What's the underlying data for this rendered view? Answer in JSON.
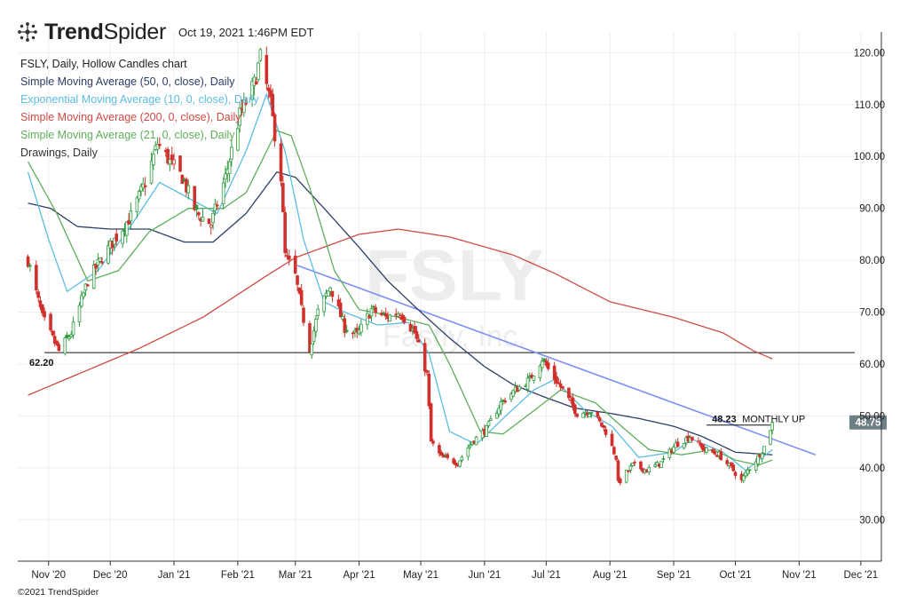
{
  "header": {
    "brand_bold": "Trend",
    "brand_light": "Spider",
    "timestamp": "Oct 19, 2021 1:46PM EDT",
    "logo_icon": "trendspider-logo-icon"
  },
  "legend": {
    "title": "FSLY, Daily, Hollow Candles chart",
    "items": [
      {
        "label": "Simple Moving Average (50, 0, close), Daily",
        "color": "#2c3e66"
      },
      {
        "label": "Exponential Moving Average (10, 0, close), Daily",
        "color": "#5bbde0"
      },
      {
        "label": "Simple Moving Average (200, 0, close), Daily",
        "color": "#d04b45"
      },
      {
        "label": "Simple Moving Average (21, 0, close), Daily",
        "color": "#5fae5a"
      },
      {
        "label": "Drawings, Daily",
        "color": "#333333"
      }
    ]
  },
  "footer": {
    "copyright": "©2021 TrendSpider"
  },
  "chart_data": {
    "type": "candlestick",
    "watermark": {
      "symbol": "FSLY",
      "company": "Fastly, Inc."
    },
    "y_axis": {
      "min": 22,
      "max": 124,
      "ticks": [
        30,
        40,
        50,
        60,
        70,
        80,
        90,
        100,
        110,
        120
      ],
      "tick_labels": [
        "30.00",
        "40.00",
        "50.00",
        "60.00",
        "70.00",
        "80.00",
        "90.00",
        "100.00",
        "110.00",
        "120.00"
      ]
    },
    "x_axis": {
      "ticks": [
        {
          "label": "Nov '20",
          "date": "2020-11-01"
        },
        {
          "label": "Dec '20",
          "date": "2020-12-01"
        },
        {
          "label": "Jan '21",
          "date": "2021-01-01"
        },
        {
          "label": "Feb '21",
          "date": "2021-02-01"
        },
        {
          "label": "Mar '21",
          "date": "2021-03-01"
        },
        {
          "label": "Apr '21",
          "date": "2021-04-01"
        },
        {
          "label": "May '21",
          "date": "2021-05-01"
        },
        {
          "label": "Jun '21",
          "date": "2021-06-01"
        },
        {
          "label": "Jul '21",
          "date": "2021-07-01"
        },
        {
          "label": "Aug '21",
          "date": "2021-08-01"
        },
        {
          "label": "Sep '21",
          "date": "2021-09-01"
        },
        {
          "label": "Oct '21",
          "date": "2021-10-01"
        },
        {
          "label": "Nov '21",
          "date": "2021-11-01"
        },
        {
          "label": "Dec '21",
          "date": "2021-12-01"
        }
      ]
    },
    "price_path": [
      [
        "2020-10-22",
        80.0
      ],
      [
        "2020-10-29",
        69.0
      ],
      [
        "2020-11-06",
        62.5
      ],
      [
        "2020-11-12",
        66.0
      ],
      [
        "2020-11-20",
        76.0
      ],
      [
        "2020-11-27",
        80.5
      ],
      [
        "2020-12-04",
        84.5
      ],
      [
        "2020-12-11",
        88.5
      ],
      [
        "2020-12-18",
        95.0
      ],
      [
        "2020-12-24",
        102.5
      ],
      [
        "2020-12-30",
        99.0
      ],
      [
        "2021-01-05",
        96.0
      ],
      [
        "2021-01-12",
        89.0
      ],
      [
        "2021-01-19",
        87.0
      ],
      [
        "2021-01-26",
        96.0
      ],
      [
        "2021-02-02",
        108.0
      ],
      [
        "2021-02-09",
        114.0
      ],
      [
        "2021-02-12",
        119.0
      ],
      [
        "2021-02-17",
        110.0
      ],
      [
        "2021-02-22",
        96.0
      ],
      [
        "2021-02-24",
        81.0
      ],
      [
        "2021-03-01",
        77.0
      ],
      [
        "2021-03-04",
        70.5
      ],
      [
        "2021-03-08",
        63.0
      ],
      [
        "2021-03-12",
        70.0
      ],
      [
        "2021-03-18",
        75.0
      ],
      [
        "2021-03-25",
        67.0
      ],
      [
        "2021-03-31",
        65.5
      ],
      [
        "2021-04-07",
        70.5
      ],
      [
        "2021-04-14",
        69.0
      ],
      [
        "2021-04-21",
        70.0
      ],
      [
        "2021-04-28",
        66.0
      ],
      [
        "2021-05-04",
        58.0
      ],
      [
        "2021-05-06",
        45.0
      ],
      [
        "2021-05-11",
        42.0
      ],
      [
        "2021-05-19",
        41.0
      ],
      [
        "2021-05-26",
        45.0
      ],
      [
        "2021-06-02",
        47.5
      ],
      [
        "2021-06-09",
        52.5
      ],
      [
        "2021-06-16",
        55.0
      ],
      [
        "2021-06-23",
        57.0
      ],
      [
        "2021-06-29",
        61.0
      ],
      [
        "2021-07-02",
        59.0
      ],
      [
        "2021-07-09",
        55.0
      ],
      [
        "2021-07-16",
        50.5
      ],
      [
        "2021-07-23",
        51.0
      ],
      [
        "2021-07-30",
        47.0
      ],
      [
        "2021-08-04",
        42.0
      ],
      [
        "2021-08-05",
        37.0
      ],
      [
        "2021-08-12",
        40.5
      ],
      [
        "2021-08-19",
        39.5
      ],
      [
        "2021-08-26",
        41.0
      ],
      [
        "2021-09-02",
        44.5
      ],
      [
        "2021-09-09",
        46.0
      ],
      [
        "2021-09-16",
        43.5
      ],
      [
        "2021-09-23",
        42.5
      ],
      [
        "2021-09-30",
        39.5
      ],
      [
        "2021-10-04",
        37.5
      ],
      [
        "2021-10-07",
        39.5
      ],
      [
        "2021-10-12",
        42.0
      ],
      [
        "2021-10-15",
        44.0
      ],
      [
        "2021-10-19",
        48.75
      ]
    ],
    "series": [
      {
        "name": "Simple Moving Average (50, 0, close), Daily",
        "color": "#2c3e66",
        "points": [
          [
            "2020-10-22",
            91.0
          ],
          [
            "2020-11-02",
            90.0
          ],
          [
            "2020-11-15",
            86.5
          ],
          [
            "2020-12-01",
            86.0
          ],
          [
            "2020-12-20",
            86.0
          ],
          [
            "2021-01-06",
            83.5
          ],
          [
            "2021-01-20",
            83.5
          ],
          [
            "2021-02-05",
            89.0
          ],
          [
            "2021-02-20",
            97.0
          ],
          [
            "2021-03-01",
            96.0
          ],
          [
            "2021-03-15",
            90.0
          ],
          [
            "2021-04-01",
            82.5
          ],
          [
            "2021-04-15",
            76.0
          ],
          [
            "2021-05-01",
            70.0
          ],
          [
            "2021-05-15",
            65.0
          ],
          [
            "2021-06-01",
            59.5
          ],
          [
            "2021-06-15",
            56.0
          ],
          [
            "2021-07-01",
            53.5
          ],
          [
            "2021-07-15",
            51.5
          ],
          [
            "2021-08-01",
            50.5
          ],
          [
            "2021-08-15",
            49.5
          ],
          [
            "2021-09-01",
            48.0
          ],
          [
            "2021-09-15",
            46.0
          ],
          [
            "2021-10-01",
            43.0
          ],
          [
            "2021-10-19",
            42.5
          ]
        ]
      },
      {
        "name": "Exponential Moving Average (10, 0, close), Daily",
        "color": "#5bbde0",
        "points": [
          [
            "2020-10-22",
            97.0
          ],
          [
            "2020-11-01",
            84.0
          ],
          [
            "2020-11-10",
            74.0
          ],
          [
            "2020-11-25",
            78.0
          ],
          [
            "2020-12-10",
            86.0
          ],
          [
            "2020-12-25",
            95.0
          ],
          [
            "2021-01-08",
            92.0
          ],
          [
            "2021-01-22",
            89.0
          ],
          [
            "2021-02-05",
            101.0
          ],
          [
            "2021-02-15",
            112.0
          ],
          [
            "2021-02-24",
            101.0
          ],
          [
            "2021-03-05",
            84.0
          ],
          [
            "2021-03-15",
            72.0
          ],
          [
            "2021-03-25",
            70.0
          ],
          [
            "2021-04-10",
            67.5
          ],
          [
            "2021-04-25",
            68.0
          ],
          [
            "2021-05-05",
            62.0
          ],
          [
            "2021-05-15",
            47.0
          ],
          [
            "2021-05-28",
            44.5
          ],
          [
            "2021-06-10",
            49.5
          ],
          [
            "2021-06-25",
            55.0
          ],
          [
            "2021-07-05",
            57.0
          ],
          [
            "2021-07-20",
            51.0
          ],
          [
            "2021-08-02",
            48.0
          ],
          [
            "2021-08-15",
            42.0
          ],
          [
            "2021-09-01",
            43.0
          ],
          [
            "2021-09-10",
            45.5
          ],
          [
            "2021-09-25",
            43.0
          ],
          [
            "2021-10-06",
            39.5
          ],
          [
            "2021-10-19",
            43.5
          ]
        ]
      },
      {
        "name": "Simple Moving Average (200, 0, close), Daily",
        "color": "#d04b45",
        "points": [
          [
            "2020-10-22",
            54.0
          ],
          [
            "2020-11-15",
            58.0
          ],
          [
            "2020-12-15",
            63.0
          ],
          [
            "2021-01-15",
            69.0
          ],
          [
            "2021-02-15",
            77.0
          ],
          [
            "2021-03-01",
            80.5
          ],
          [
            "2021-04-01",
            85.0
          ],
          [
            "2021-04-20",
            86.0
          ],
          [
            "2021-05-15",
            84.5
          ],
          [
            "2021-06-15",
            81.0
          ],
          [
            "2021-07-05",
            77.5
          ],
          [
            "2021-08-01",
            72.0
          ],
          [
            "2021-09-01",
            69.0
          ],
          [
            "2021-09-25",
            66.0
          ],
          [
            "2021-10-10",
            62.5
          ],
          [
            "2021-10-19",
            61.0
          ]
        ]
      },
      {
        "name": "Simple Moving Average (21, 0, close), Daily",
        "color": "#5fae5a",
        "points": [
          [
            "2020-10-22",
            99.0
          ],
          [
            "2020-11-05",
            89.0
          ],
          [
            "2020-11-20",
            76.0
          ],
          [
            "2020-12-05",
            78.0
          ],
          [
            "2020-12-20",
            85.5
          ],
          [
            "2021-01-08",
            90.0
          ],
          [
            "2021-01-25",
            90.0
          ],
          [
            "2021-02-05",
            93.0
          ],
          [
            "2021-02-20",
            105.0
          ],
          [
            "2021-02-27",
            104.0
          ],
          [
            "2021-03-08",
            94.0
          ],
          [
            "2021-03-20",
            78.0
          ],
          [
            "2021-04-01",
            70.5
          ],
          [
            "2021-04-20",
            69.0
          ],
          [
            "2021-05-05",
            67.5
          ],
          [
            "2021-05-15",
            60.0
          ],
          [
            "2021-05-30",
            47.0
          ],
          [
            "2021-06-10",
            46.5
          ],
          [
            "2021-06-25",
            51.0
          ],
          [
            "2021-07-08",
            55.0
          ],
          [
            "2021-07-25",
            52.5
          ],
          [
            "2021-08-08",
            47.5
          ],
          [
            "2021-08-20",
            43.5
          ],
          [
            "2021-09-05",
            42.5
          ],
          [
            "2021-09-20",
            43.5
          ],
          [
            "2021-10-01",
            41.5
          ],
          [
            "2021-10-12",
            40.5
          ],
          [
            "2021-10-19",
            41.5
          ]
        ]
      }
    ],
    "drawings": {
      "trendline": {
        "color": "#7f90f5",
        "start": [
          "2021-03-02",
          79.0
        ],
        "end": [
          "2021-11-09",
          42.5
        ]
      },
      "horizontal_line": {
        "value": 62.2,
        "label": "62.20",
        "start": "2020-10-30",
        "end": "2021-11-28"
      },
      "monthly_level": {
        "value": 48.23,
        "label": "48.23",
        "text": "MONTHLY UP",
        "start": "2021-09-17",
        "end": "2021-10-18"
      }
    },
    "last_price": {
      "value": 48.75,
      "label": "48.75"
    },
    "grid": true,
    "legend_position": "top-left"
  }
}
